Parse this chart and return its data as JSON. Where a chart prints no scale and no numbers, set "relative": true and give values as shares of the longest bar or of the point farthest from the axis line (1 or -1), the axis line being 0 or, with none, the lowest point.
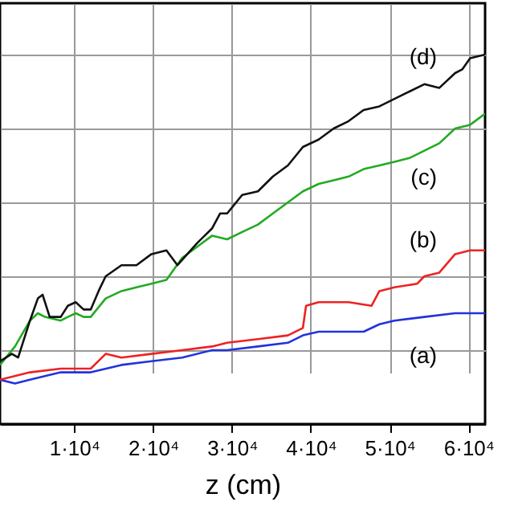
{
  "chart_data": {
    "type": "line",
    "xlabel": "z (cm)",
    "relative": true,
    "grid": true,
    "line_style": "solid",
    "xlim": [
      600,
      62100
    ],
    "xticks": [
      {
        "value": 10000,
        "label": "1·10⁴"
      },
      {
        "value": 20000,
        "label": "2·10⁴"
      },
      {
        "value": 30000,
        "label": "3·10⁴"
      },
      {
        "value": 40000,
        "label": "4·10⁴"
      },
      {
        "value": 50000,
        "label": "5·10⁴"
      },
      {
        "value": 60000,
        "label": "6·10⁴"
      }
    ],
    "series": [
      {
        "name": "(a)",
        "color": "#2233dd",
        "x": [
          600,
          2500,
          4400,
          8300,
          12100,
          16000,
          19800,
          23700,
          27500,
          29400,
          33300,
          37100,
          39000,
          41000,
          46700,
          48700,
          50600,
          54400,
          58300,
          60200,
          62100
        ],
        "values": [
          0.12,
          0.11,
          0.12,
          0.14,
          0.14,
          0.16,
          0.17,
          0.18,
          0.2,
          0.2,
          0.21,
          0.22,
          0.24,
          0.25,
          0.25,
          0.27,
          0.28,
          0.29,
          0.3,
          0.3,
          0.3
        ]
      },
      {
        "name": "(b)",
        "color": "#ee2222",
        "x": [
          600,
          4400,
          8300,
          12100,
          14000,
          16000,
          19800,
          23700,
          27500,
          29400,
          33300,
          37100,
          39000,
          39400,
          41000,
          44800,
          47700,
          48700,
          50600,
          53500,
          54400,
          56300,
          58300,
          60200,
          62100
        ],
        "values": [
          0.12,
          0.14,
          0.15,
          0.15,
          0.19,
          0.18,
          0.19,
          0.2,
          0.21,
          0.22,
          0.23,
          0.24,
          0.26,
          0.32,
          0.33,
          0.33,
          0.32,
          0.36,
          0.37,
          0.38,
          0.4,
          0.41,
          0.46,
          0.47,
          0.47
        ]
      },
      {
        "name": "(c)",
        "color": "#22aa22",
        "x": [
          600,
          2500,
          4400,
          5400,
          6300,
          8300,
          9200,
          10200,
          11200,
          12100,
          14000,
          16000,
          17900,
          19800,
          21700,
          23700,
          25600,
          27500,
          29400,
          31300,
          33300,
          35200,
          37100,
          39000,
          41000,
          42900,
          44800,
          46700,
          48700,
          50600,
          52500,
          54400,
          56300,
          58300,
          60200,
          62100
        ],
        "values": [
          0.16,
          0.21,
          0.28,
          0.3,
          0.29,
          0.28,
          0.29,
          0.3,
          0.29,
          0.29,
          0.34,
          0.36,
          0.37,
          0.38,
          0.39,
          0.45,
          0.48,
          0.51,
          0.5,
          0.52,
          0.54,
          0.57,
          0.6,
          0.63,
          0.65,
          0.66,
          0.67,
          0.69,
          0.7,
          0.71,
          0.72,
          0.74,
          0.76,
          0.8,
          0.81,
          0.84
        ]
      },
      {
        "name": "(d)",
        "color": "#111111",
        "x": [
          600,
          2100,
          2900,
          4400,
          5400,
          6000,
          6900,
          8300,
          9200,
          10200,
          11200,
          12100,
          13100,
          14000,
          16000,
          17900,
          19800,
          21700,
          23100,
          25600,
          27500,
          28500,
          29400,
          31300,
          33300,
          35200,
          37100,
          39000,
          41000,
          42900,
          44800,
          46700,
          48700,
          50600,
          52500,
          54400,
          56300,
          58300,
          59200,
          60200,
          62100
        ],
        "values": [
          0.17,
          0.19,
          0.18,
          0.28,
          0.34,
          0.35,
          0.29,
          0.29,
          0.32,
          0.33,
          0.31,
          0.31,
          0.36,
          0.4,
          0.43,
          0.43,
          0.46,
          0.47,
          0.43,
          0.49,
          0.53,
          0.57,
          0.57,
          0.62,
          0.63,
          0.67,
          0.7,
          0.75,
          0.77,
          0.8,
          0.82,
          0.85,
          0.86,
          0.88,
          0.9,
          0.92,
          0.91,
          0.95,
          0.96,
          0.99,
          1
        ]
      }
    ]
  }
}
